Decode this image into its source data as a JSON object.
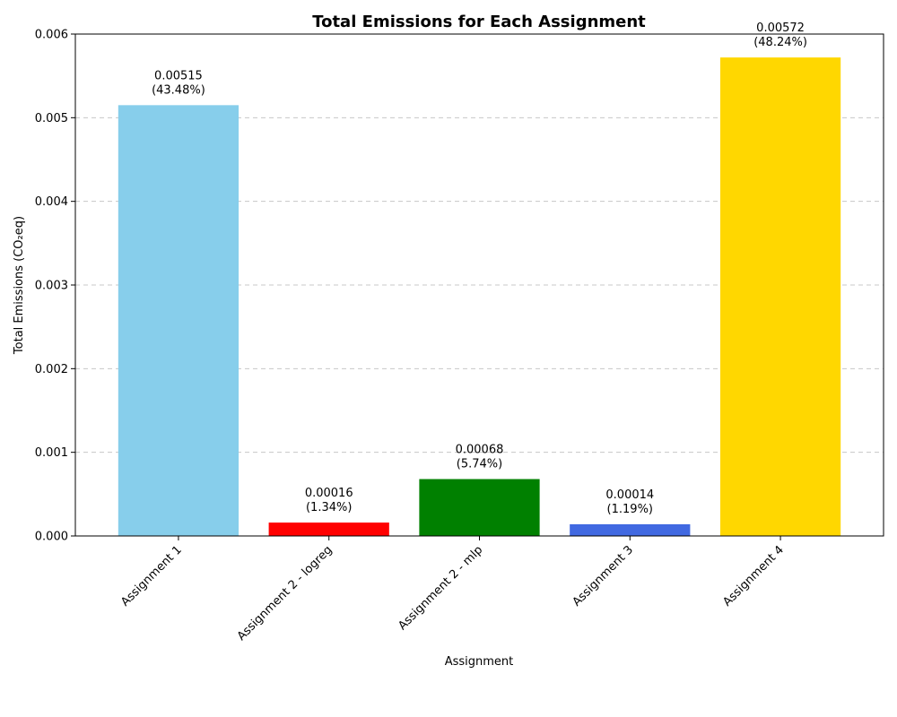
{
  "chart_data": {
    "type": "bar",
    "title": "Total Emissions for Each Assignment",
    "xlabel": "Assignment",
    "ylabel": "Total Emissions (CO₂eq)",
    "categories": [
      "Assignment 1",
      "Assignment 2 - logreg",
      "Assignment 2 - mlp",
      "Assignment 3",
      "Assignment 4"
    ],
    "values": [
      0.00515,
      0.00016,
      0.00068,
      0.00014,
      0.00572
    ],
    "value_labels": [
      "0.00515",
      "0.00016",
      "0.00068",
      "0.00014",
      "0.00572"
    ],
    "percent_labels": [
      "(43.48%)",
      "(1.34%)",
      "(5.74%)",
      "(1.19%)",
      "(48.24%)"
    ],
    "colors": [
      "#87ceeb",
      "#ff0000",
      "#008000",
      "#4169e1",
      "#ffd700"
    ],
    "ylim": [
      0,
      0.006
    ],
    "yticks": [
      0,
      0.001,
      0.002,
      0.003,
      0.004,
      0.005,
      0.006
    ],
    "ytick_labels": [
      "0.000",
      "0.001",
      "0.002",
      "0.003",
      "0.004",
      "0.005",
      "0.006"
    ],
    "grid": "y",
    "grid_style": "dashed",
    "xtick_rotation": "45"
  }
}
